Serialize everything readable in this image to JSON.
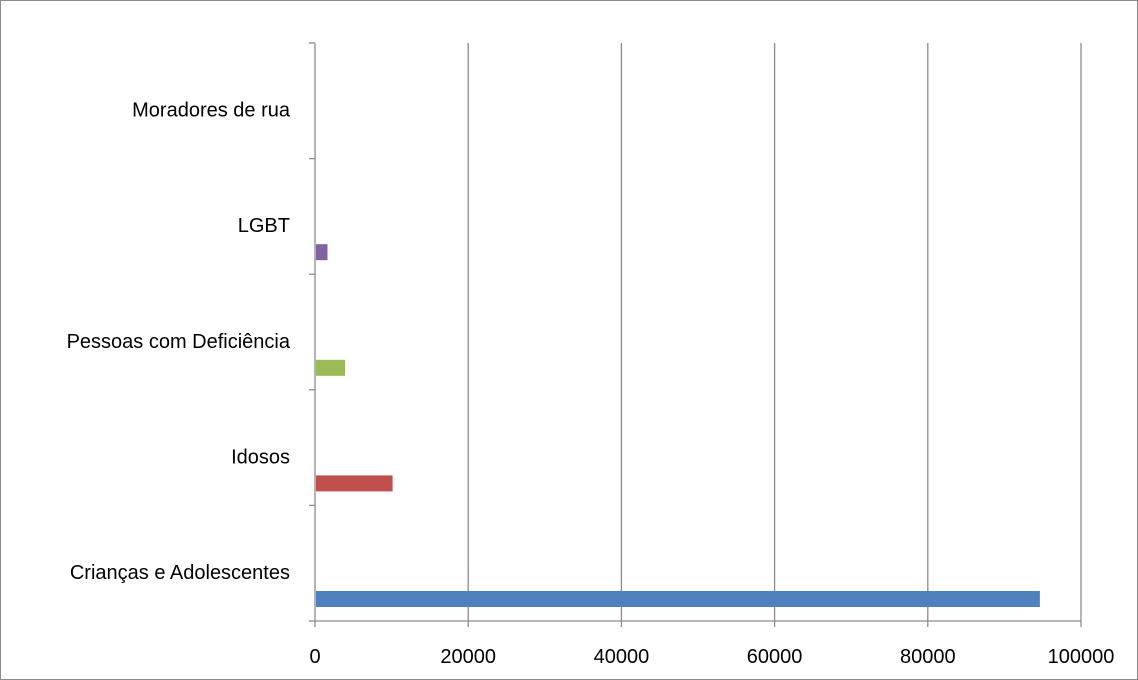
{
  "chart_data": {
    "type": "bar",
    "orientation": "horizontal",
    "title": "",
    "xlabel": "",
    "ylabel": "",
    "xlim": [
      0,
      100000
    ],
    "x_ticks": [
      "0",
      "20000",
      "40000",
      "60000",
      "80000",
      "100000"
    ],
    "grid": "vertical",
    "legend": "none",
    "categories": [
      "Crianças e Adolescentes",
      "Idosos",
      "Pessoas com Deficiência",
      "LGBT",
      "Moradores de rua"
    ],
    "values": [
      94500,
      10000,
      3800,
      1500,
      0
    ],
    "colors": [
      "#4f81bd",
      "#c0504d",
      "#9bbb59",
      "#8064a2",
      "#4bacc6"
    ]
  }
}
